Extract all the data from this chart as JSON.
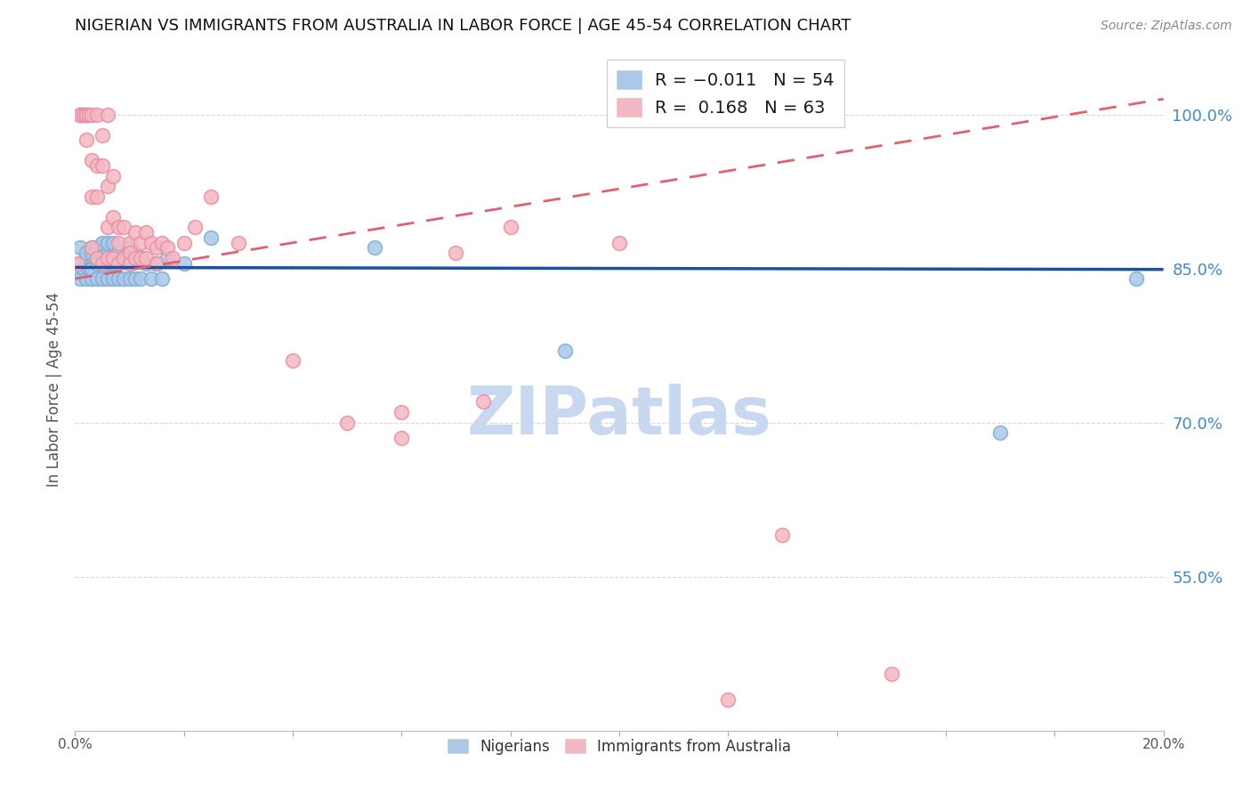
{
  "title": "NIGERIAN VS IMMIGRANTS FROM AUSTRALIA IN LABOR FORCE | AGE 45-54 CORRELATION CHART",
  "source": "Source: ZipAtlas.com",
  "ylabel": "In Labor Force | Age 45-54",
  "xlim": [
    0.0,
    0.2
  ],
  "ylim": [
    0.4,
    1.065
  ],
  "yticks_right": [
    0.55,
    0.7,
    0.85,
    1.0
  ],
  "ytick_right_labels": [
    "55.0%",
    "70.0%",
    "85.0%",
    "100.0%"
  ],
  "blue_fill": "#aac8e8",
  "blue_edge": "#7bafd4",
  "pink_fill": "#f4b8c4",
  "pink_edge": "#e890a0",
  "trend_blue": "#1a52a0",
  "trend_pink": "#e06070",
  "watermark": "ZIPatlas",
  "watermark_color": "#c8d8f0",
  "bg_color": "#ffffff",
  "grid_color": "#d8d8d8",
  "nigerians_label": "Nigerians",
  "australia_label": "Immigrants from Australia",
  "legend_box_color": "#f0f0f0",
  "blue_scatter_x": [
    0.0005,
    0.001,
    0.001,
    0.001,
    0.0015,
    0.002,
    0.002,
    0.002,
    0.002,
    0.0025,
    0.003,
    0.003,
    0.003,
    0.003,
    0.003,
    0.004,
    0.004,
    0.004,
    0.004,
    0.005,
    0.005,
    0.005,
    0.005,
    0.006,
    0.006,
    0.006,
    0.006,
    0.007,
    0.007,
    0.007,
    0.007,
    0.008,
    0.008,
    0.008,
    0.009,
    0.009,
    0.01,
    0.01,
    0.01,
    0.011,
    0.011,
    0.012,
    0.012,
    0.013,
    0.014,
    0.015,
    0.016,
    0.017,
    0.02,
    0.025,
    0.055,
    0.09,
    0.17,
    0.195
  ],
  "blue_scatter_y": [
    0.845,
    0.855,
    0.84,
    0.87,
    0.85,
    0.84,
    0.86,
    0.855,
    0.865,
    0.85,
    0.84,
    0.85,
    0.87,
    0.85,
    0.865,
    0.84,
    0.86,
    0.855,
    0.87,
    0.84,
    0.855,
    0.86,
    0.875,
    0.84,
    0.855,
    0.865,
    0.875,
    0.84,
    0.855,
    0.86,
    0.875,
    0.84,
    0.855,
    0.865,
    0.84,
    0.86,
    0.84,
    0.855,
    0.87,
    0.84,
    0.865,
    0.84,
    0.86,
    0.855,
    0.84,
    0.855,
    0.84,
    0.86,
    0.855,
    0.88,
    0.87,
    0.77,
    0.69,
    0.84
  ],
  "pink_scatter_x": [
    0.0005,
    0.001,
    0.001,
    0.001,
    0.0015,
    0.0015,
    0.002,
    0.002,
    0.002,
    0.0025,
    0.003,
    0.003,
    0.003,
    0.003,
    0.004,
    0.004,
    0.004,
    0.004,
    0.005,
    0.005,
    0.005,
    0.006,
    0.006,
    0.006,
    0.006,
    0.007,
    0.007,
    0.007,
    0.008,
    0.008,
    0.008,
    0.009,
    0.009,
    0.01,
    0.01,
    0.01,
    0.011,
    0.011,
    0.012,
    0.012,
    0.013,
    0.013,
    0.014,
    0.015,
    0.015,
    0.016,
    0.017,
    0.018,
    0.02,
    0.022,
    0.025,
    0.03,
    0.04,
    0.05,
    0.06,
    0.07,
    0.08,
    0.1,
    0.13,
    0.15,
    0.06,
    0.075,
    0.12
  ],
  "pink_scatter_y": [
    0.855,
    1.0,
    1.0,
    1.0,
    1.0,
    1.0,
    1.0,
    1.0,
    0.975,
    1.0,
    1.0,
    0.955,
    0.92,
    0.87,
    1.0,
    0.95,
    0.92,
    0.86,
    0.98,
    0.95,
    0.855,
    1.0,
    0.93,
    0.89,
    0.86,
    0.94,
    0.9,
    0.86,
    0.89,
    0.875,
    0.855,
    0.89,
    0.86,
    0.875,
    0.865,
    0.855,
    0.885,
    0.86,
    0.875,
    0.86,
    0.885,
    0.86,
    0.875,
    0.87,
    0.855,
    0.875,
    0.87,
    0.86,
    0.875,
    0.89,
    0.92,
    0.875,
    0.76,
    0.7,
    0.71,
    0.865,
    0.89,
    0.875,
    0.59,
    0.455,
    0.685,
    0.72,
    0.43
  ],
  "blue_trend_x0": 0.0,
  "blue_trend_y0": 0.851,
  "blue_trend_x1": 0.2,
  "blue_trend_y1": 0.849,
  "pink_trend_x0": 0.0,
  "pink_trend_y0": 0.84,
  "pink_trend_x1": 0.2,
  "pink_trend_y1": 1.015
}
